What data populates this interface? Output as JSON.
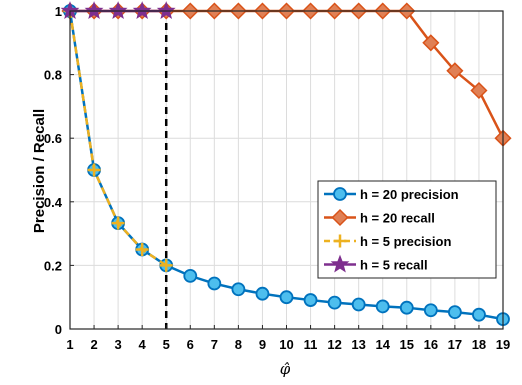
{
  "chart_data": {
    "type": "line",
    "xlabel": "φ̂",
    "ylabel": "Precision / Recall",
    "xlim": [
      1,
      19
    ],
    "ylim": [
      0,
      1
    ],
    "xticks": [
      1,
      2,
      3,
      4,
      5,
      6,
      7,
      8,
      9,
      10,
      11,
      12,
      13,
      14,
      15,
      16,
      17,
      18,
      19
    ],
    "yticks": [
      0,
      0.2,
      0.4,
      0.6,
      0.8,
      1
    ],
    "ytick_labels": [
      "0",
      "0.2",
      "0.4",
      "0.6",
      "0.8",
      "1"
    ],
    "grid": true,
    "vline": {
      "x": 5,
      "style": "dashed",
      "color": "#000000"
    },
    "legend_position": "right-center",
    "series": [
      {
        "name": "h = 20 precision",
        "color": "#0072BD",
        "marker": "circle",
        "marker_fill": "#4DBEEE",
        "x": [
          1,
          2,
          3,
          4,
          5,
          6,
          7,
          8,
          9,
          10,
          11,
          12,
          13,
          14,
          15,
          16,
          17,
          18,
          19
        ],
        "values": [
          1,
          0.5,
          0.333,
          0.25,
          0.2,
          0.167,
          0.143,
          0.125,
          0.111,
          0.1,
          0.091,
          0.083,
          0.077,
          0.071,
          0.067,
          0.059,
          0.053,
          0.045,
          0.031
        ]
      },
      {
        "name": "h = 20 recall",
        "color": "#D95319",
        "marker": "diamond",
        "marker_fill": "#E08055",
        "x": [
          1,
          2,
          3,
          4,
          5,
          6,
          7,
          8,
          9,
          10,
          11,
          12,
          13,
          14,
          15,
          16,
          17,
          18,
          19
        ],
        "values": [
          1,
          1,
          1,
          1,
          1,
          1,
          1,
          1,
          1,
          1,
          1,
          1,
          1,
          1,
          1,
          0.9,
          0.812,
          0.75,
          0.6
        ]
      },
      {
        "name": "h = 5 precision",
        "color": "#EDB120",
        "marker": "plus",
        "dashed": true,
        "x": [
          1,
          2,
          3,
          4,
          5
        ],
        "values": [
          1,
          0.5,
          0.333,
          0.25,
          0.2
        ]
      },
      {
        "name": "h = 5 recall",
        "color": "#7E2F8E",
        "marker": "star",
        "x": [
          1,
          2,
          3,
          4,
          5
        ],
        "values": [
          1,
          1,
          1,
          1,
          1
        ]
      }
    ]
  }
}
